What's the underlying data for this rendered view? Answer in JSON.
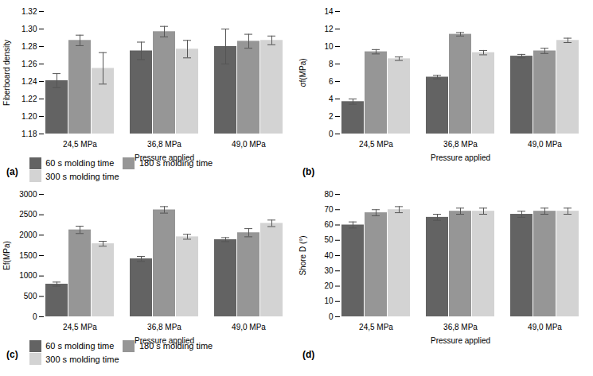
{
  "chart_data": [
    {
      "type": "bar",
      "title": "(a)",
      "xlabel": "Pressure applied",
      "ylabel": "Fiberboard density",
      "categories": [
        "24,5 MPa",
        "36,8 MPa",
        "49,0 MPa"
      ],
      "series": [
        {
          "name": "60 s molding time",
          "color": "#636363",
          "values": [
            1.241,
            1.275,
            1.28
          ],
          "errors": [
            0.008,
            0.01,
            0.02
          ]
        },
        {
          "name": "180 s molding time",
          "color": "#969696",
          "values": [
            1.287,
            1.297,
            1.286
          ],
          "errors": [
            0.006,
            0.006,
            0.008
          ]
        },
        {
          "name": "300 s molding time",
          "color": "#d3d3d3",
          "values": [
            1.255,
            1.277,
            1.287
          ],
          "errors": [
            0.018,
            0.01,
            0.005
          ]
        }
      ],
      "ylim": [
        1.18,
        1.32
      ],
      "yticks": [
        1.18,
        {
          "value": 1.2,
          "label": "1.20"
        },
        1.22,
        1.24,
        1.26,
        1.28,
        {
          "value": 1.3,
          "label": "1.30"
        },
        1.32
      ],
      "legend": "bottom"
    },
    {
      "type": "bar",
      "title": "(b)",
      "xlabel": "Pressure applied",
      "ylabel": "σf(MPa)",
      "categories": [
        "24,5 MPa",
        "36,8 MPa",
        "49,0 MPa"
      ],
      "series": [
        {
          "name": "60 s molding time",
          "color": "#636363",
          "values": [
            3.7,
            6.5,
            8.9
          ],
          "errors": [
            0.3,
            0.2,
            0.2
          ]
        },
        {
          "name": "180 s molding time",
          "color": "#969696",
          "values": [
            9.4,
            11.4,
            9.5
          ],
          "errors": [
            0.25,
            0.2,
            0.3
          ]
        },
        {
          "name": "300 s molding time",
          "color": "#d3d3d3",
          "values": [
            8.6,
            9.3,
            10.7
          ],
          "errors": [
            0.2,
            0.25,
            0.25
          ]
        }
      ],
      "ylim": [
        0,
        14
      ],
      "yticks": [
        0,
        2,
        4,
        6,
        8,
        10,
        12,
        14
      ]
    },
    {
      "type": "bar",
      "title": "(c)",
      "xlabel": "Pressure applied",
      "ylabel": "Ef(MPa)",
      "categories": [
        "24,5 MPa",
        "36,8 MPa",
        "49,0 MPa"
      ],
      "series": [
        {
          "name": "60 s molding time",
          "color": "#636363",
          "values": [
            800,
            1420,
            1890
          ],
          "errors": [
            50,
            60,
            50
          ]
        },
        {
          "name": "180 s molding time",
          "color": "#969696",
          "values": [
            2130,
            2620,
            2060
          ],
          "errors": [
            90,
            80,
            100
          ]
        },
        {
          "name": "300 s molding time",
          "color": "#d3d3d3",
          "values": [
            1790,
            1960,
            2290
          ],
          "errors": [
            60,
            60,
            80
          ]
        }
      ],
      "ylim": [
        0,
        3000
      ],
      "yticks": [
        0,
        500,
        1000,
        1500,
        2000,
        2500,
        3000
      ],
      "legend": "bottom"
    },
    {
      "type": "bar",
      "title": "(d)",
      "xlabel": "Pressure applied",
      "ylabel": "Shore D (°)",
      "categories": [
        "24,5 MPa",
        "36,8 MPa",
        "49,0 MPa"
      ],
      "series": [
        {
          "name": "60 s molding time",
          "color": "#636363",
          "values": [
            60,
            65,
            67
          ],
          "errors": [
            2,
            2,
            2
          ]
        },
        {
          "name": "180 s molding time",
          "color": "#969696",
          "values": [
            68,
            69,
            69
          ],
          "errors": [
            2,
            2,
            2
          ]
        },
        {
          "name": "300 s molding time",
          "color": "#d3d3d3",
          "values": [
            70,
            69,
            69
          ],
          "errors": [
            2,
            2,
            2
          ]
        }
      ],
      "ylim": [
        0,
        80
      ],
      "yticks": [
        0,
        10,
        20,
        30,
        40,
        50,
        60,
        70,
        80
      ]
    }
  ]
}
